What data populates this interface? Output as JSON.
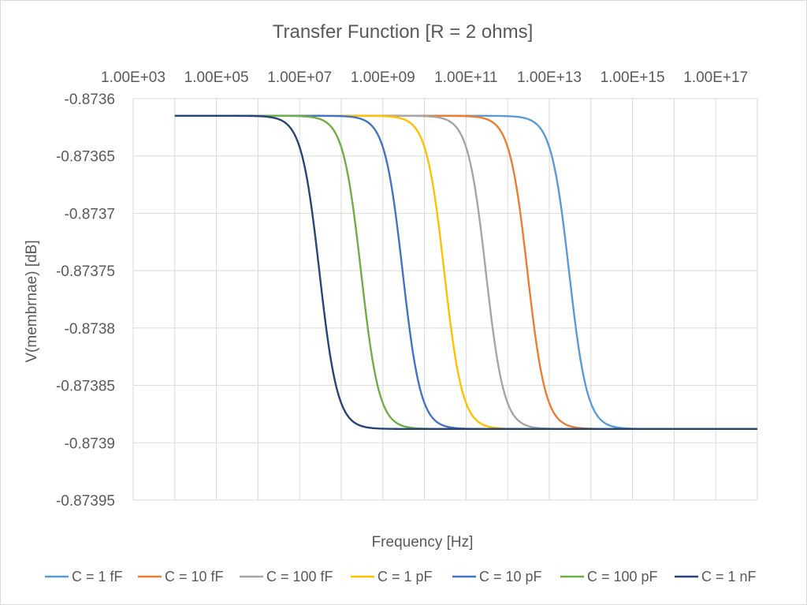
{
  "chart_data": {
    "type": "line",
    "title": "Transfer Function [R = 2 ohms]",
    "xlabel": "Frequency [Hz]",
    "ylabel": "V(membrnae)  [dB]",
    "x_scale": "log10",
    "x_axis_position": "top",
    "xlim": [
      1000,
      1e+18
    ],
    "ylim": [
      -0.87395,
      -0.8736
    ],
    "y_major_step": 5e-05,
    "x_ticks": [
      "1.00E+03",
      "1.00E+05",
      "1.00E+07",
      "1.00E+09",
      "1.00E+11",
      "1.00E+13",
      "1.00E+15",
      "1.00E+17"
    ],
    "y_ticks": [
      "-0.8736",
      "-0.87365",
      "-0.8737",
      "-0.87375",
      "-0.8738",
      "-0.87385",
      "-0.8739",
      "-0.87395"
    ],
    "gridlines": true,
    "legend_position": "bottom",
    "x_range": [
      10000,
      1e+18
    ],
    "high_level": -0.873615,
    "low_level": -0.873888,
    "series": [
      {
        "name": "C = 1 fF",
        "color": "#5b9bd5",
        "corner_hz": 30000000000000.0
      },
      {
        "name": "C = 10 fF",
        "color": "#ed7d31",
        "corner_hz": 3000000000000.0
      },
      {
        "name": "C = 100 fF",
        "color": "#a5a5a5",
        "corner_hz": 300000000000.0
      },
      {
        "name": "C = 1 pF",
        "color": "#ffc000",
        "corner_hz": 30000000000.0
      },
      {
        "name": "C = 10 pF",
        "color": "#4472c4",
        "corner_hz": 3000000000.0
      },
      {
        "name": "C = 100 pF",
        "color": "#70ad47",
        "corner_hz": 300000000.0
      },
      {
        "name": "C = 1 nF",
        "color": "#264478",
        "corner_hz": 30000000.0
      }
    ]
  }
}
